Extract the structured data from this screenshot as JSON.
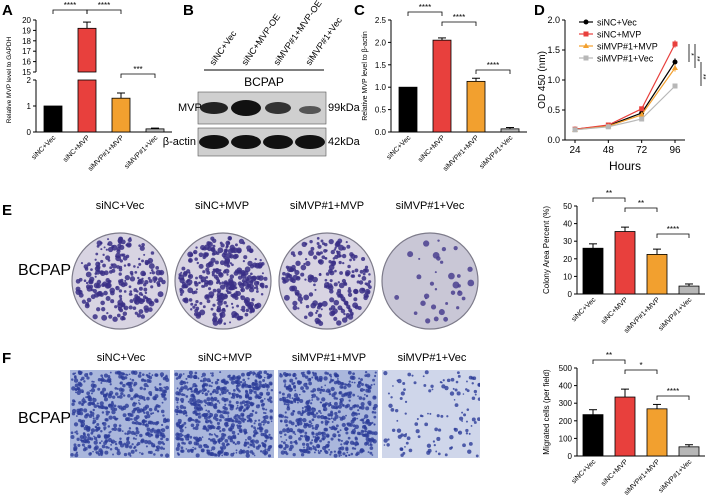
{
  "labels": {
    "A": "A",
    "B": "B",
    "C": "C",
    "D": "D",
    "E": "E",
    "F": "F"
  },
  "groups": [
    "siNC+Vec",
    "siNC+MVP",
    "siMVP#1+MVP",
    "siMVP#1+Vec"
  ],
  "colors": {
    "black": "#000000",
    "red": "#e8403d",
    "orange": "#f2a02f",
    "grey": "#b7b7b7",
    "dark": "#333333"
  },
  "panel_b": {
    "cell_line": "BCPAP",
    "lanes": [
      "siNC+Vec",
      "siNC+MVP-OE",
      "siMVP#1+MVP-OE",
      "siMVP#1+Vec"
    ],
    "rows": [
      {
        "name": "MVP",
        "size": "99kDa"
      },
      {
        "name": "β-actin",
        "size": "42kDa"
      }
    ]
  },
  "panel_e": {
    "cell_line": "BCPAP",
    "dishes": [
      "siNC+Vec",
      "siNC+MVP",
      "siMVP#1+MVP",
      "siMVP#1+Vec"
    ]
  },
  "panel_f": {
    "cell_line": "BCPAP",
    "images": [
      "siNC+Vec",
      "siNC+MVP",
      "siMVP#1+MVP",
      "siMVP#1+Vec"
    ]
  },
  "chart_data": [
    {
      "id": "A",
      "type": "bar",
      "ylabel": "Relative MVP level to GAPDH",
      "categories": [
        "siNC+Vec",
        "siNC+MVP",
        "siMVP#1+MVP",
        "siMVP#1+Vec"
      ],
      "values": [
        1.0,
        19.2,
        1.3,
        0.12
      ],
      "errors": [
        0.0,
        0.6,
        0.2,
        0.03
      ],
      "axis_break": {
        "lower": [
          0,
          2
        ],
        "upper": [
          15,
          20
        ]
      },
      "tick_labels": [
        "0",
        "1",
        "2",
        "15",
        "16",
        "17",
        "18",
        "19",
        "20"
      ],
      "significance": [
        {
          "from": 0,
          "to": 1,
          "label": "****"
        },
        {
          "from": 1,
          "to": 2,
          "label": "****"
        },
        {
          "from": 2,
          "to": 3,
          "label": "***"
        }
      ]
    },
    {
      "id": "C",
      "type": "bar",
      "ylabel": "Relative MVP level to β-actin",
      "categories": [
        "siNC+Vec",
        "siNC+MVP",
        "siMVP#1+MVP",
        "siMVP#1+Vec"
      ],
      "values": [
        1.0,
        2.05,
        1.13,
        0.07
      ],
      "errors": [
        0.0,
        0.05,
        0.07,
        0.03
      ],
      "ylim": [
        0,
        2.5
      ],
      "yticks": [
        0.0,
        0.5,
        1.0,
        1.5,
        2.0,
        2.5
      ],
      "tick_labels": [
        "0.0",
        "0.5",
        "1.0",
        "1.5",
        "2.0",
        "2.5"
      ],
      "significance": [
        {
          "from": 0,
          "to": 1,
          "label": "****"
        },
        {
          "from": 1,
          "to": 2,
          "label": "****"
        },
        {
          "from": 2,
          "to": 3,
          "label": "****"
        }
      ]
    },
    {
      "id": "D",
      "type": "line",
      "xlabel": "Hours",
      "ylabel": "OD 450 (nm)",
      "x": [
        24,
        48,
        72,
        96
      ],
      "xticks": [
        "24",
        "48",
        "72",
        "96"
      ],
      "ylim": [
        0.0,
        2.0
      ],
      "yticks": [
        0.0,
        0.5,
        1.0,
        1.5,
        2.0
      ],
      "tick_labels": [
        "0.0",
        "0.5",
        "1.0",
        "1.5",
        "2.0"
      ],
      "legend": "top-left",
      "series": [
        {
          "name": "siNC+Vec",
          "values": [
            0.18,
            0.24,
            0.45,
            1.3
          ],
          "errors": [
            0.01,
            0.01,
            0.03,
            0.06
          ]
        },
        {
          "name": "siNC+MVP",
          "values": [
            0.18,
            0.25,
            0.52,
            1.6
          ],
          "errors": [
            0.01,
            0.01,
            0.03,
            0.06
          ]
        },
        {
          "name": "siMVP#1+MVP",
          "values": [
            0.17,
            0.23,
            0.42,
            1.2
          ],
          "errors": [
            0.01,
            0.01,
            0.03,
            0.06
          ]
        },
        {
          "name": "siMVP#1+Vec",
          "values": [
            0.17,
            0.22,
            0.35,
            0.9
          ],
          "errors": [
            0.01,
            0.01,
            0.02,
            0.04
          ]
        }
      ],
      "significance": [
        "*",
        "**",
        "**"
      ]
    },
    {
      "id": "E",
      "type": "bar",
      "ylabel": "Colony Area Percent (%)",
      "categories": [
        "siNC+Vec",
        "siNC+MVP",
        "siMVP#1+MVP",
        "siMVP#1+Vec"
      ],
      "values": [
        26,
        35.5,
        22.5,
        4.5
      ],
      "errors": [
        2.5,
        2.5,
        3.0,
        1.2
      ],
      "ylim": [
        0,
        50
      ],
      "yticks": [
        0,
        10,
        20,
        30,
        40,
        50
      ],
      "tick_labels": [
        "0",
        "10",
        "20",
        "30",
        "40",
        "50"
      ],
      "significance": [
        {
          "from": 0,
          "to": 1,
          "label": "**"
        },
        {
          "from": 1,
          "to": 2,
          "label": "**"
        },
        {
          "from": 2,
          "to": 3,
          "label": "****"
        }
      ]
    },
    {
      "id": "F",
      "type": "bar",
      "ylabel": "Migrated cells (per field)",
      "categories": [
        "siNC+Vec",
        "siNC+MVP",
        "siMVP#1+MVP",
        "siMVP#1+Vec"
      ],
      "values": [
        235,
        335,
        268,
        52
      ],
      "errors": [
        28,
        45,
        25,
        12
      ],
      "ylim": [
        0,
        500
      ],
      "yticks": [
        0,
        100,
        200,
        300,
        400,
        500
      ],
      "tick_labels": [
        "0",
        "100",
        "200",
        "300",
        "400",
        "500"
      ],
      "significance": [
        {
          "from": 0,
          "to": 1,
          "label": "**"
        },
        {
          "from": 1,
          "to": 2,
          "label": "*"
        },
        {
          "from": 2,
          "to": 3,
          "label": "****"
        }
      ]
    }
  ]
}
